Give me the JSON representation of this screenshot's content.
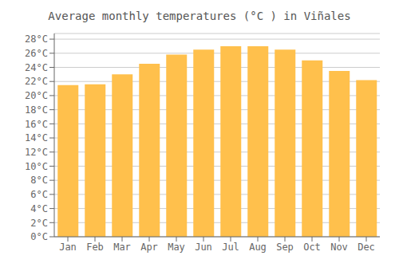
{
  "chart_data": {
    "type": "bar",
    "title": "Average monthly temperatures (°C ) in Viñales",
    "categories": [
      "Jan",
      "Feb",
      "Mar",
      "Apr",
      "May",
      "Jun",
      "Jul",
      "Aug",
      "Sep",
      "Oct",
      "Nov",
      "Dec"
    ],
    "values": [
      21.5,
      21.6,
      23.0,
      24.5,
      25.8,
      26.5,
      27.0,
      27.0,
      26.5,
      25.0,
      23.5,
      22.2
    ],
    "color": "#FFC04C",
    "ylim": [
      0,
      28.8
    ],
    "yticks": [
      {
        "value": 0,
        "label": "0°C"
      },
      {
        "value": 2,
        "label": "2°C"
      },
      {
        "value": 4,
        "label": "4°C"
      },
      {
        "value": 6,
        "label": "6°C"
      },
      {
        "value": 8,
        "label": "8°C"
      },
      {
        "value": 10,
        "label": "10°C"
      },
      {
        "value": 12,
        "label": "12°C"
      },
      {
        "value": 14,
        "label": "14°C"
      },
      {
        "value": 16,
        "label": "16°C"
      },
      {
        "value": 18,
        "label": "18°C"
      },
      {
        "value": 20,
        "label": "20°C"
      },
      {
        "value": 22,
        "label": "22°C"
      },
      {
        "value": 24,
        "label": "24°C"
      },
      {
        "value": 26,
        "label": "26°C"
      },
      {
        "value": 28,
        "label": "28°C"
      }
    ],
    "grid": true
  }
}
